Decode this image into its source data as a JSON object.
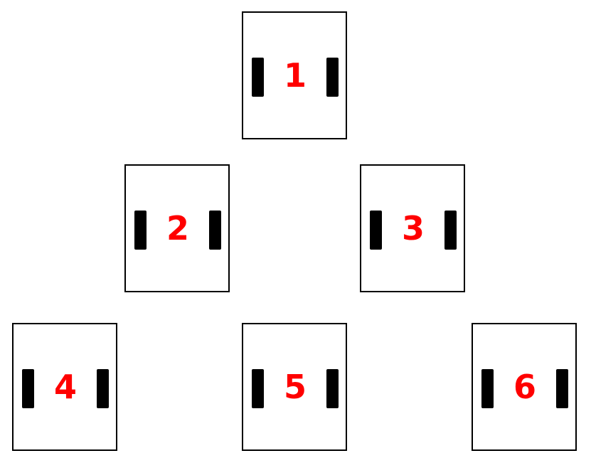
{
  "colors": {
    "number": "#ff0000",
    "border": "#000000",
    "bar": "#000000",
    "background": "#ffffff"
  },
  "cards": [
    {
      "label": "1"
    },
    {
      "label": "2"
    },
    {
      "label": "3"
    },
    {
      "label": "4"
    },
    {
      "label": "5"
    },
    {
      "label": "6"
    }
  ]
}
